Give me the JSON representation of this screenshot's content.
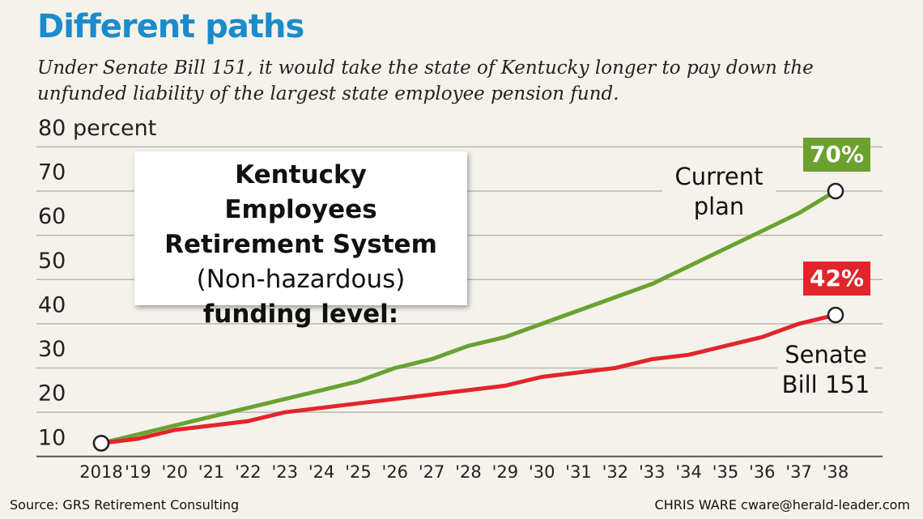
{
  "chart_data": {
    "type": "line",
    "title": "Different paths",
    "subtitle": "Under Senate Bill 151, it would take the state of Kentucky longer to pay down the unfunded liability of the largest state employee pension fund.",
    "box": {
      "line1": "Kentucky Employees Retirement System",
      "line2": "(Non-hazardous)",
      "line3": "funding level:"
    },
    "categories": [
      "2018",
      "'19",
      "'20",
      "'21",
      "'22",
      "'23",
      "'24",
      "'25",
      "'26",
      "'27",
      "'28",
      "'29",
      "'30",
      "'31",
      "'32",
      "'33",
      "'34",
      "'35",
      "'36",
      "'37",
      "'38"
    ],
    "series": [
      {
        "name": "Current plan",
        "color": "#6aa12f",
        "values": [
          13,
          15,
          17,
          19,
          21,
          23,
          25,
          27,
          30,
          32,
          35,
          37,
          40,
          43,
          46,
          49,
          53,
          57,
          61,
          65,
          70
        ],
        "value_labels": [
          null,
          null,
          null,
          null,
          null,
          null,
          null,
          null,
          null,
          null,
          null,
          null,
          null,
          null,
          null,
          null,
          null,
          null,
          null,
          null,
          "70%"
        ]
      },
      {
        "name": "Senate Bill 151",
        "color": "#e2252b",
        "values": [
          13,
          14,
          16,
          17,
          18,
          20,
          21,
          22,
          23,
          24,
          25,
          26,
          28,
          29,
          30,
          32,
          33,
          35,
          37,
          40,
          42
        ],
        "value_labels": [
          null,
          null,
          null,
          null,
          null,
          null,
          null,
          null,
          null,
          null,
          null,
          null,
          null,
          null,
          null,
          null,
          null,
          null,
          null,
          null,
          "42%"
        ]
      }
    ],
    "ylim": [
      10,
      80
    ],
    "yticks": [
      10,
      20,
      30,
      40,
      50,
      60,
      70,
      {
        "value": 80,
        "label": "80 percent"
      }
    ],
    "grid": true,
    "source": "Source: GRS Retirement Consulting",
    "credit": "CHRIS WARE cware@herald-leader.com"
  }
}
